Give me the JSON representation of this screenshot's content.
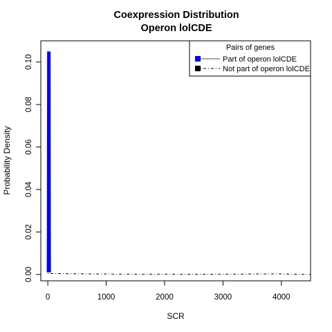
{
  "chart_data": {
    "type": "line",
    "title": "Coexpression Distribution",
    "subtitle": "Operon lolCDE",
    "xlabel": "SCR",
    "ylabel": "Probability Density",
    "xlim": [
      -120,
      4500
    ],
    "ylim": [
      -0.003,
      0.11
    ],
    "x_ticks": [
      0,
      1000,
      2000,
      3000,
      4000
    ],
    "x_tick_labels": [
      "0",
      "1000",
      "2000",
      "3000",
      "4000"
    ],
    "y_ticks": [
      0.0,
      0.02,
      0.04,
      0.06,
      0.08,
      0.1
    ],
    "y_tick_labels": [
      "0.00",
      "0.02",
      "0.04",
      "0.06",
      "0.08",
      "0.10"
    ],
    "grid": false,
    "legend": {
      "title": "Pairs of genes",
      "placement": "top-right",
      "entries": [
        {
          "label": "Part of operon lolCDE",
          "color": "#0000ff",
          "line": "solid"
        },
        {
          "label": "Not part of operon lolCDE",
          "color": "#000000",
          "line": "dotdash"
        }
      ]
    },
    "series": [
      {
        "name": "Part of operon lolCDE",
        "color": "#0000ff",
        "line": "solid",
        "x": [
          0,
          2,
          4,
          6,
          8,
          10,
          12,
          14,
          16,
          18,
          20,
          22,
          24,
          26,
          28,
          30,
          32,
          34,
          36
        ],
        "y": [
          0.001,
          0.02,
          0.06,
          0.1045,
          0.1045,
          0.1045,
          0.1045,
          0.1045,
          0.1045,
          0.1045,
          0.1045,
          0.1045,
          0.1045,
          0.1045,
          0.1045,
          0.1045,
          0.06,
          0.02,
          0.001
        ]
      },
      {
        "name": "Not part of operon lolCDE",
        "color": "#000000",
        "line": "dotdash",
        "x": [
          0,
          200,
          500,
          1000,
          1500,
          2000,
          2500,
          3000,
          3500,
          4000,
          4200,
          4500
        ],
        "y": [
          0.0004,
          0.0004,
          0.0003,
          0.0002,
          0.00015,
          0.00012,
          0.0001,
          0.00012,
          0.0002,
          0.00025,
          0.0001,
          0.0
        ]
      }
    ]
  }
}
